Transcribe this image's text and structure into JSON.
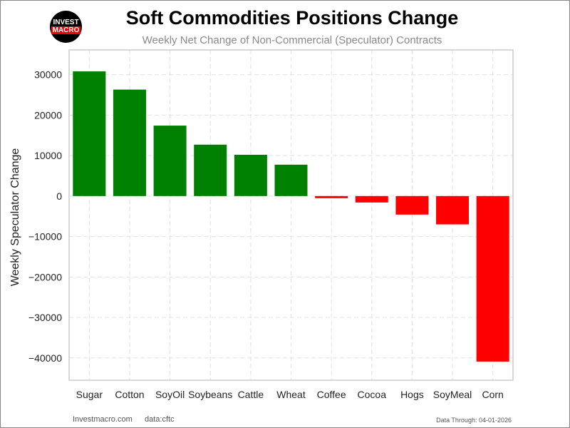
{
  "header": {
    "title": "Soft Commodities Positions Change",
    "subtitle": "Weekly Net Change of Non-Commercial (Speculator) Contracts",
    "logo_top": "INVEST",
    "logo_bottom": "MACRO"
  },
  "footer": {
    "site": "Investmacro.com",
    "source": "data:cftc",
    "through": "Data Through: 04-01-2026"
  },
  "colors": {
    "positive": "#008000",
    "negative": "#ff0000",
    "grid": "#e0e0e0"
  },
  "chart_data": {
    "type": "bar",
    "title": "Soft Commodities Positions Change",
    "subtitle": "Weekly Net Change of Non-Commercial (Speculator) Contracts",
    "xlabel": "",
    "ylabel": "Weekly Speculator Change",
    "ylim": [
      -45500,
      36100
    ],
    "yticks": [
      30000,
      20000,
      10000,
      0,
      -10000,
      -20000,
      -30000,
      -40000
    ],
    "ytick_labels": [
      "30000",
      "20000",
      "10000",
      "0",
      "−10000",
      "−20000",
      "−30000",
      "−40000"
    ],
    "grid": true,
    "categories": [
      "Sugar",
      "Cotton",
      "SoyOil",
      "Soybeans",
      "Cattle",
      "Wheat",
      "Coffee",
      "Cocoa",
      "Hogs",
      "SoyMeal",
      "Corn"
    ],
    "values": [
      30800,
      26300,
      17400,
      12700,
      10200,
      7750,
      -530,
      -1590,
      -4580,
      -7000,
      -40900
    ]
  }
}
